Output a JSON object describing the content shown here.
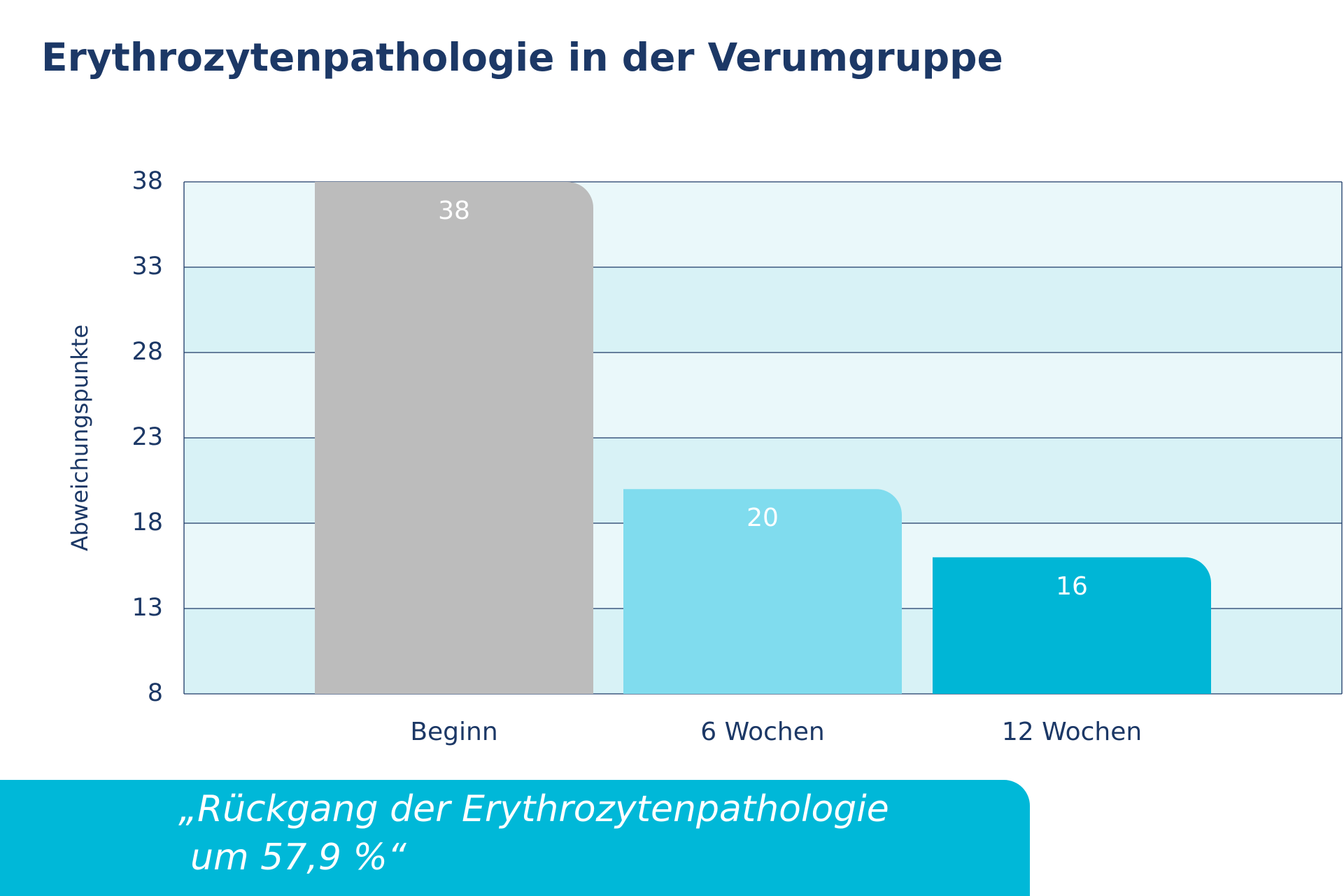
{
  "chart_data": {
    "type": "bar",
    "title": "Erythrozytenpathologie in der Verumgruppe",
    "y_label": "Abweichungspunkte",
    "categories": [
      "Beginn",
      "6 Wochen",
      "12 Wochen"
    ],
    "values": [
      38,
      20,
      16
    ],
    "colors": [
      "#bcbcbc",
      "#80dcee",
      "#00b6d6"
    ],
    "ylim": [
      8,
      38
    ],
    "yticks": [
      8,
      13,
      18,
      23,
      28,
      33,
      38
    ],
    "grid": true,
    "annotation": [
      "„Rückgang der Erythrozytenpathologie",
      "um 57,9 %“"
    ]
  }
}
